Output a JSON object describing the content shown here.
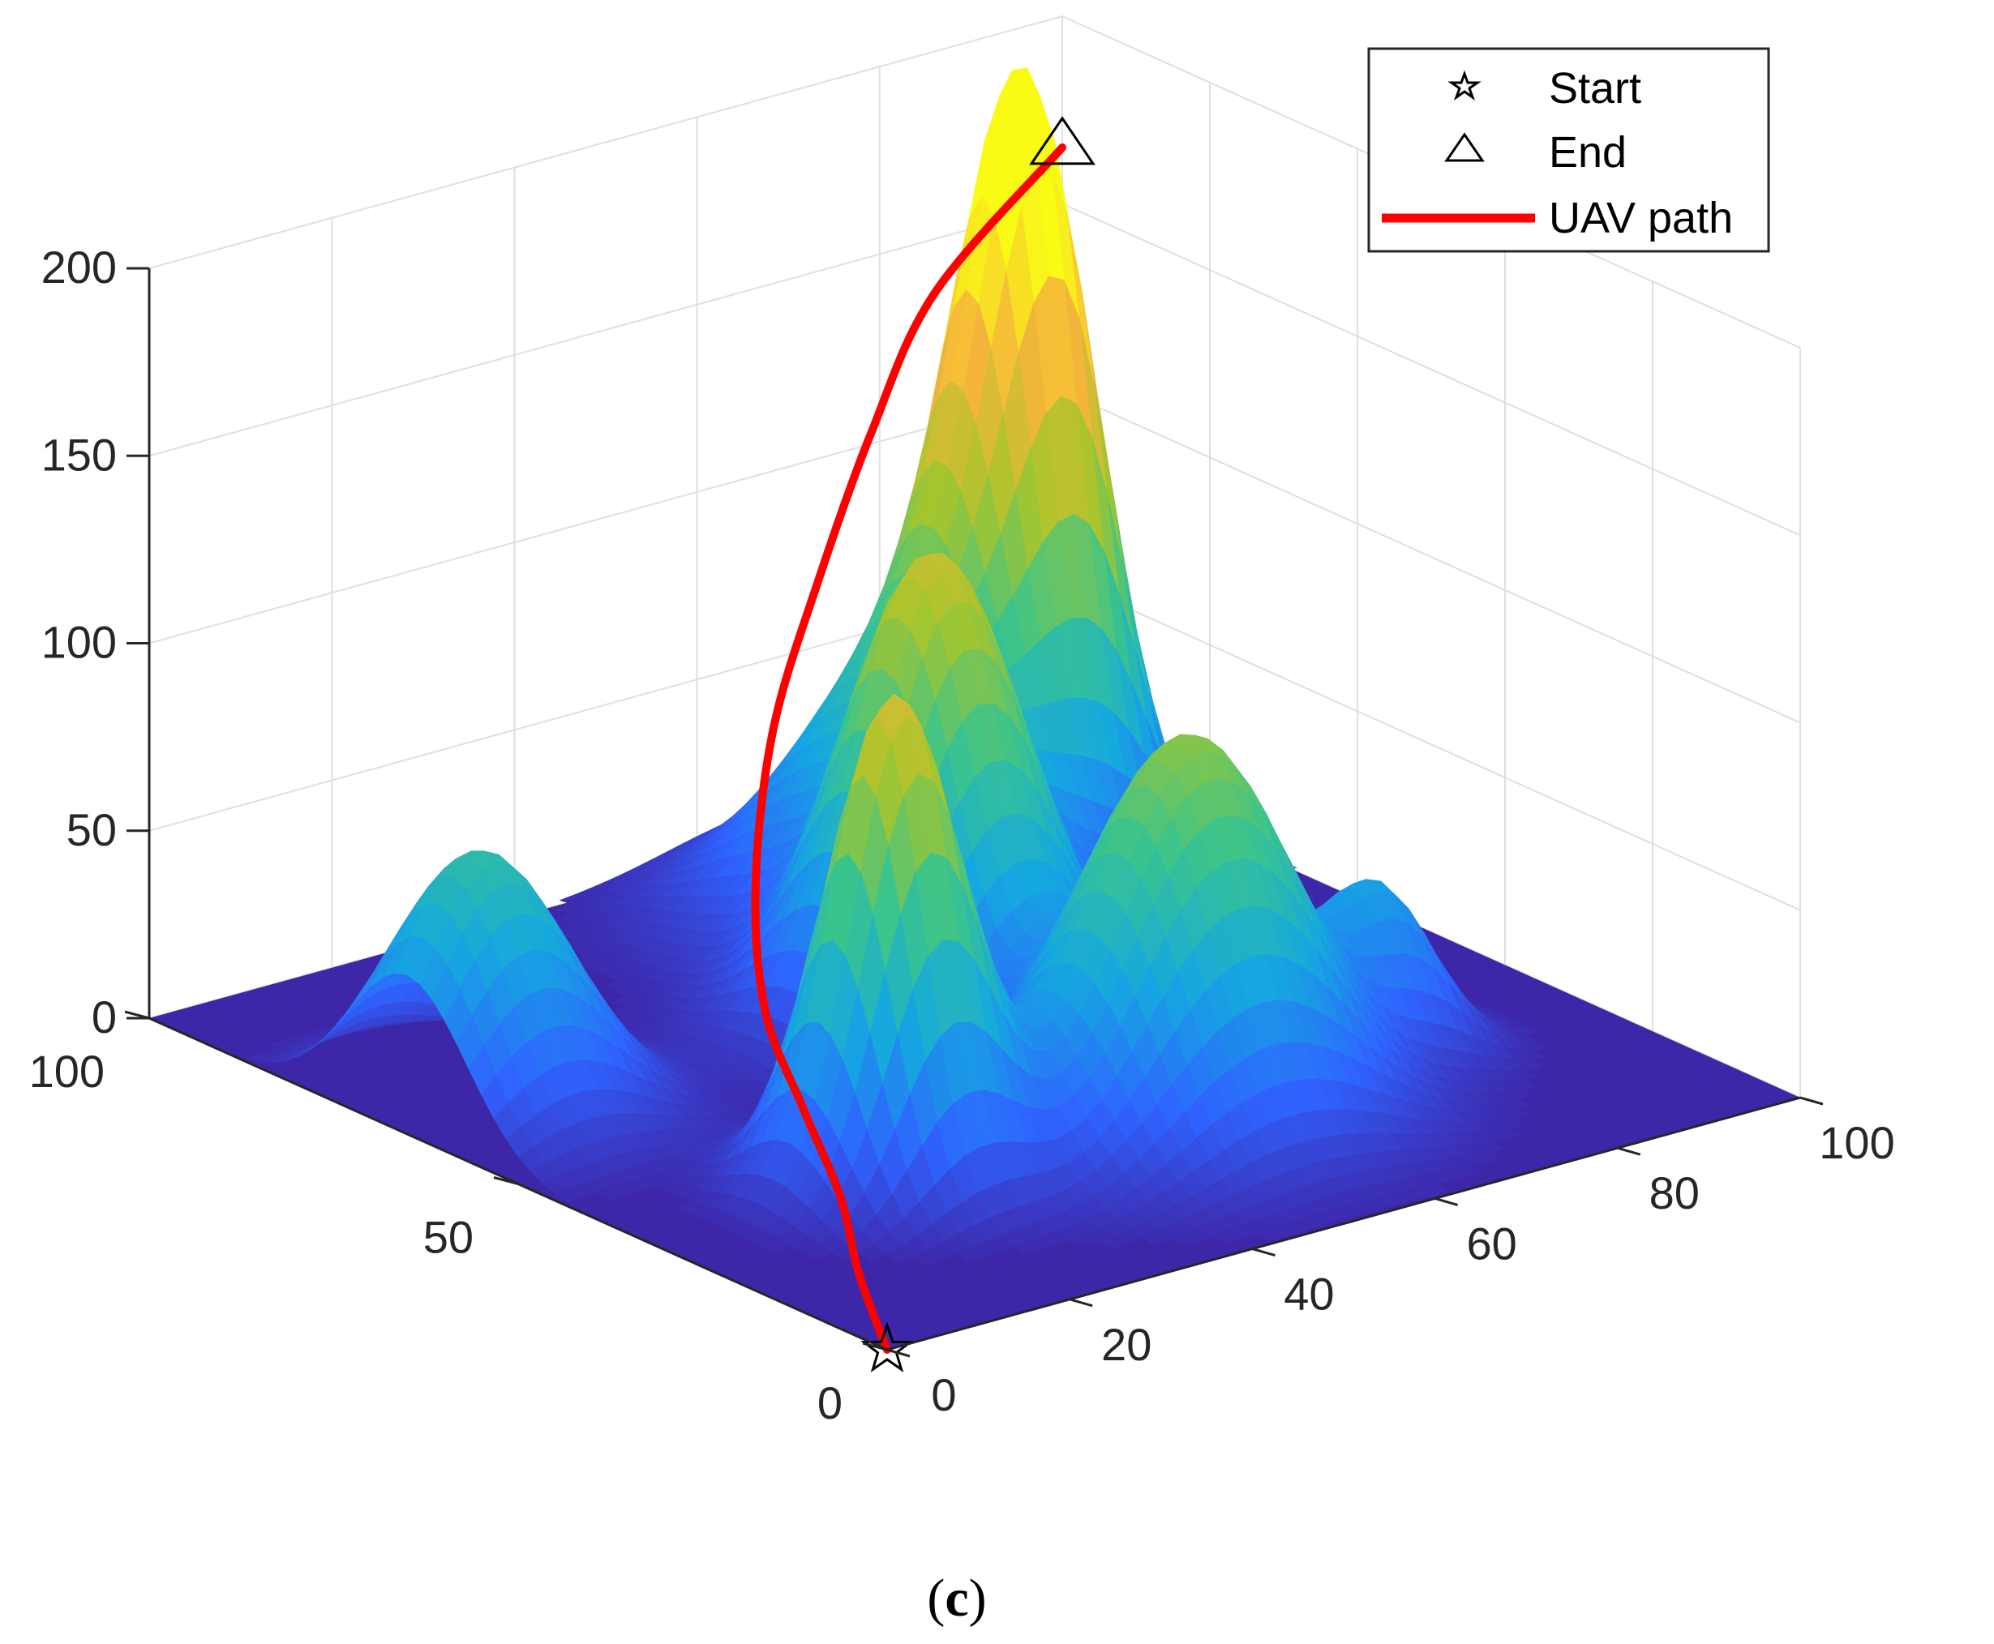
{
  "chart_data": {
    "type": "surface3d",
    "title": "",
    "xlabel": "",
    "ylabel": "",
    "zlabel": "",
    "x_ticks": [
      "0",
      "20",
      "40",
      "60",
      "80",
      "100"
    ],
    "y_ticks": [
      "0",
      "50",
      "100"
    ],
    "z_ticks": [
      "0",
      "50",
      "100",
      "150",
      "200"
    ],
    "xlim": [
      0,
      100
    ],
    "ylim": [
      0,
      100
    ],
    "zlim": [
      0,
      200
    ],
    "grid": true,
    "legend_position": "top-right",
    "colormap": [
      "#3e26a8",
      "#2f63ff",
      "#15a8e0",
      "#3ac48d",
      "#a6c52c",
      "#f6b53c",
      "#f9fb15"
    ],
    "terrain_peaks": [
      {
        "x": 25,
        "y": 30,
        "height": 130,
        "spread": 6
      },
      {
        "x": 52,
        "y": 58,
        "height": 120,
        "spread": 8
      },
      {
        "x": 80,
        "y": 80,
        "height": 175,
        "spread": 6
      },
      {
        "x": 8,
        "y": 65,
        "height": 70,
        "spread": 8
      },
      {
        "x": 48,
        "y": 25,
        "height": 45,
        "spread": 9
      },
      {
        "x": 58,
        "y": 28,
        "height": 75,
        "spread": 9
      },
      {
        "x": 78,
        "y": 30,
        "height": 40,
        "spread": 5
      },
      {
        "x": 68,
        "y": 78,
        "height": 78,
        "spread": 11
      }
    ],
    "series": [
      {
        "name": "UAV path",
        "color": "#ff0000",
        "points": [
          {
            "x": 0,
            "y": 0,
            "z": 0
          },
          {
            "x": 5,
            "y": 10,
            "z": 8
          },
          {
            "x": 11,
            "y": 20,
            "z": 16
          },
          {
            "x": 15,
            "y": 30,
            "z": 28
          },
          {
            "x": 19,
            "y": 40,
            "z": 42
          },
          {
            "x": 26,
            "y": 50,
            "z": 62
          },
          {
            "x": 36,
            "y": 60,
            "z": 88
          },
          {
            "x": 49,
            "y": 70,
            "z": 110
          },
          {
            "x": 63,
            "y": 80,
            "z": 132
          },
          {
            "x": 78,
            "y": 90,
            "z": 150
          },
          {
            "x": 100,
            "y": 100,
            "z": 165
          }
        ]
      }
    ],
    "markers": [
      {
        "name": "Start",
        "symbol": "pentagram",
        "x": 0,
        "y": 0,
        "z": 0
      },
      {
        "name": "End",
        "symbol": "triangle",
        "x": 100,
        "y": 100,
        "z": 165
      }
    ]
  },
  "legend": {
    "items": [
      {
        "label": "Start",
        "icon": "star-icon"
      },
      {
        "label": "End",
        "icon": "triangle-icon"
      },
      {
        "label": "UAV path",
        "icon": "red-line-icon",
        "color": "#ff0000"
      }
    ]
  },
  "caption": {
    "open": "(",
    "letter": "c",
    "close": ")"
  }
}
